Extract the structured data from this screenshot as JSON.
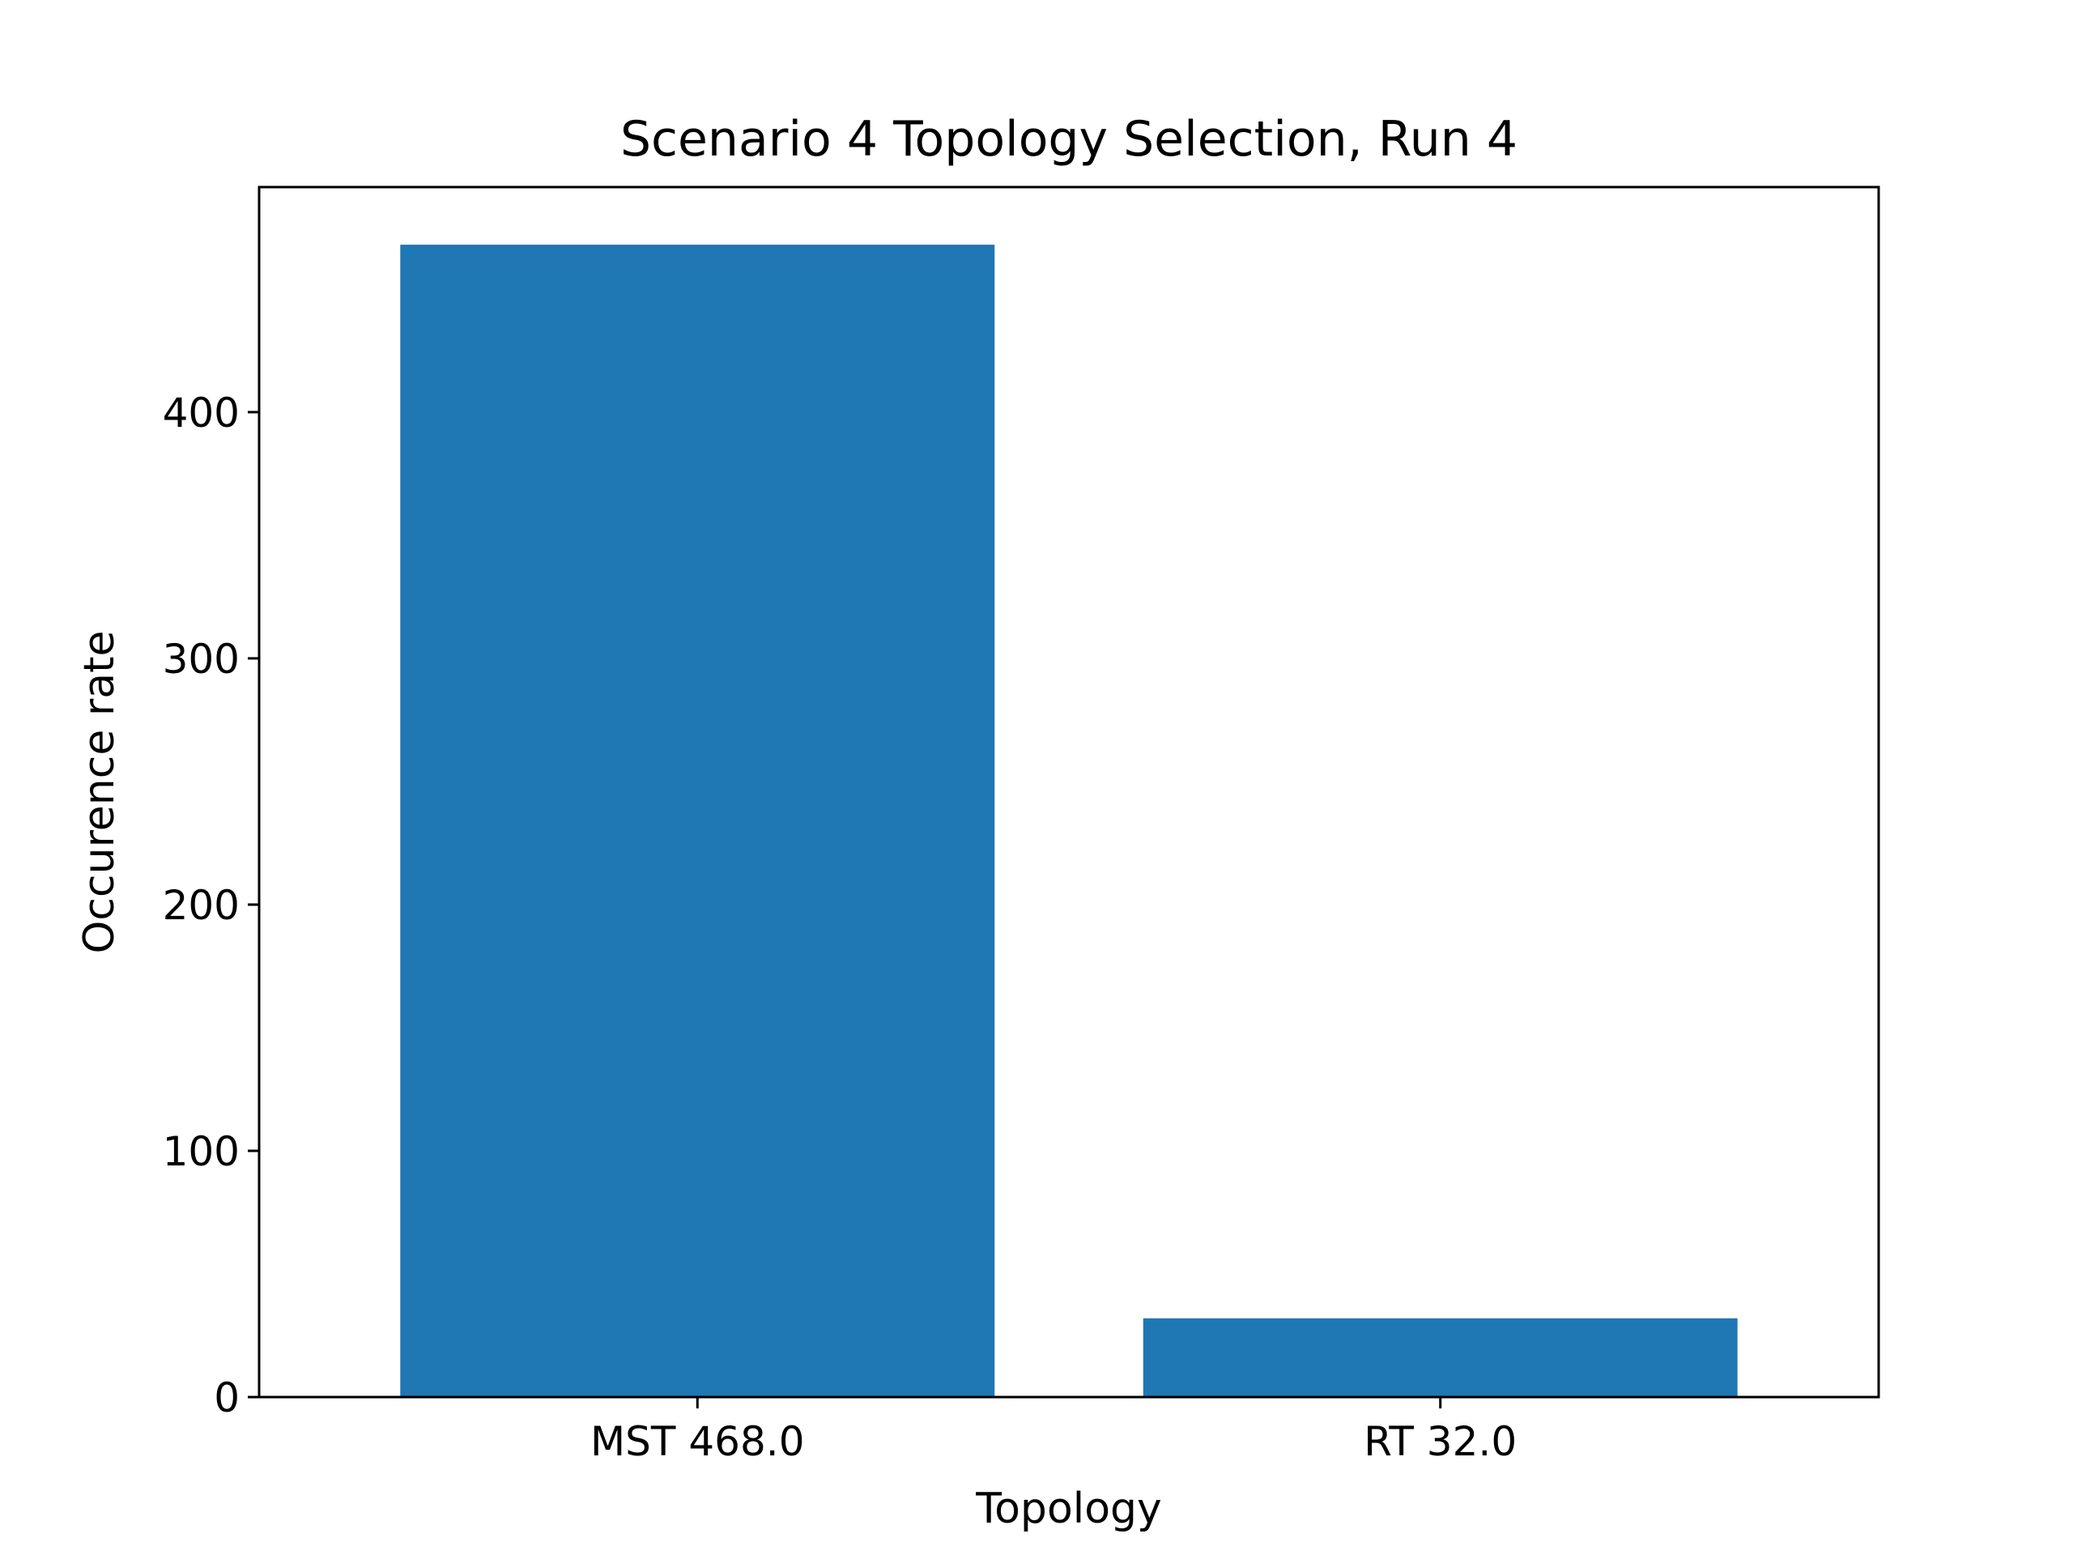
{
  "chart_data": {
    "type": "bar",
    "title": "Scenario 4 Topology Selection, Run 4",
    "xlabel": "Topology",
    "ylabel": "Occurence rate",
    "categories": [
      "MST 468.0",
      "RT 32.0"
    ],
    "values": [
      468.0,
      32.0
    ],
    "ylim": [
      0,
      491.4
    ],
    "yticks": [
      0,
      100,
      200,
      300,
      400
    ],
    "ytick_labels": [
      "0",
      "100",
      "200",
      "300",
      "400"
    ],
    "grid": false,
    "legend": "none",
    "bar_color": "#1f77b4"
  }
}
